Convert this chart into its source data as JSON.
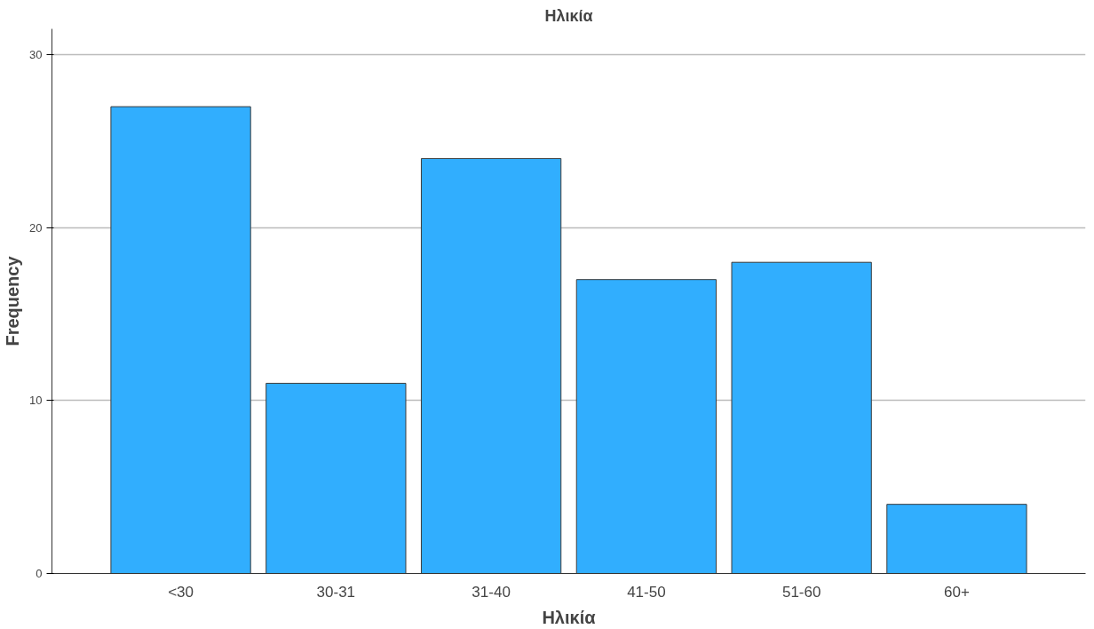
{
  "chart_data": {
    "type": "bar",
    "title": "Ηλικία",
    "xlabel": "Ηλικία",
    "ylabel": "Frequency",
    "categories": [
      "<30",
      "30-31",
      "31-40",
      "41-50",
      "51-60",
      "60+"
    ],
    "values": [
      27,
      11,
      24,
      17,
      18,
      4
    ],
    "color": "#31aefe",
    "ylim": [
      0,
      31.5
    ],
    "yticks": [
      0,
      10,
      20,
      30
    ],
    "grid": "y"
  }
}
